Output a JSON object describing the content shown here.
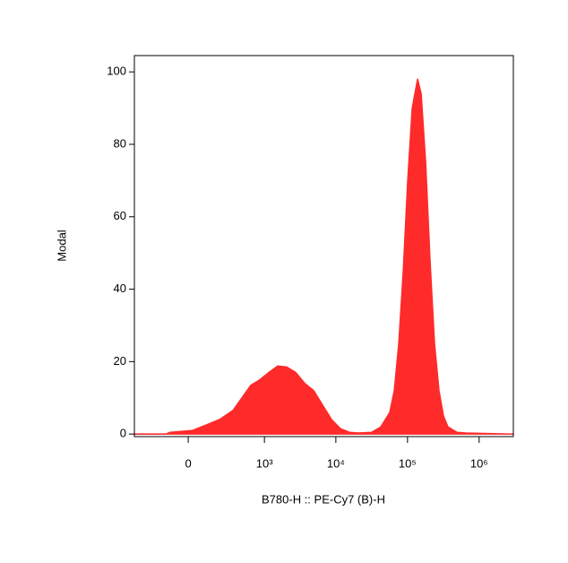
{
  "chart_data": {
    "type": "area",
    "xlabel": "B780-H :: PE-Cy7 (B)-H",
    "ylabel": "Modal",
    "xscale": "biexponential",
    "color": "#ff2a2a",
    "xlim": [
      -475,
      3000000
    ],
    "ylim": [
      -0.7,
      104.5
    ],
    "xticks": [
      0,
      {
        "value": 1000,
        "label": "10³"
      },
      {
        "value": 10000,
        "label": "10⁴"
      },
      {
        "value": 100000,
        "label": "10⁵"
      },
      {
        "value": 1000000,
        "label": "10⁶"
      }
    ],
    "yticks": [
      0,
      20,
      40,
      60,
      80,
      100
    ],
    "x": [
      -475,
      -136,
      -106,
      25,
      106,
      206,
      346,
      473,
      641,
      861,
      1154,
      1543,
      2060,
      2749,
      3668,
      4896,
      6530,
      8706,
      11600,
      15470,
      20640,
      31790,
      42400,
      56560,
      65300,
      75440,
      87130,
      100600,
      116200,
      138100,
      154900,
      178900,
      206500,
      238500,
      275400,
      318000,
      367300,
      489800,
      653000,
      3000000
    ],
    "values": [
      0,
      0,
      0.5,
      1,
      2.5,
      4,
      6.5,
      10,
      13.5,
      15,
      17,
      18.8,
      18.5,
      17,
      14,
      12,
      8,
      4,
      1.5,
      0.5,
      0.3,
      0.5,
      2,
      6,
      12,
      25,
      45,
      70,
      90,
      98,
      94,
      75,
      48,
      25,
      12,
      5,
      2,
      0.5,
      0.3,
      0
    ]
  }
}
